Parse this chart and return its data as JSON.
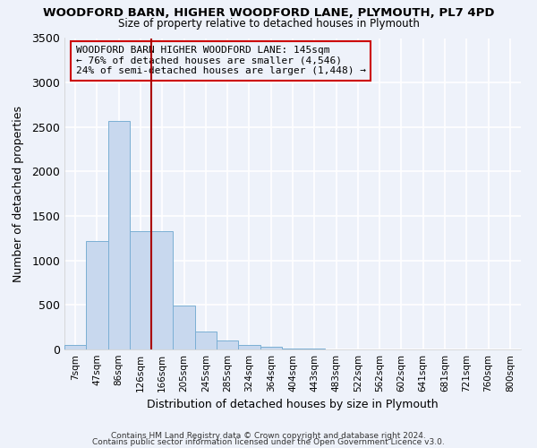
{
  "title": "WOODFORD BARN, HIGHER WOODFORD LANE, PLYMOUTH, PL7 4PD",
  "subtitle": "Size of property relative to detached houses in Plymouth",
  "xlabel": "Distribution of detached houses by size in Plymouth",
  "ylabel": "Number of detached properties",
  "bin_labels": [
    "7sqm",
    "47sqm",
    "86sqm",
    "126sqm",
    "166sqm",
    "205sqm",
    "245sqm",
    "285sqm",
    "324sqm",
    "364sqm",
    "404sqm",
    "443sqm",
    "483sqm",
    "522sqm",
    "562sqm",
    "602sqm",
    "641sqm",
    "681sqm",
    "721sqm",
    "760sqm",
    "800sqm"
  ],
  "bar_heights": [
    55,
    1220,
    2570,
    1330,
    1330,
    495,
    200,
    105,
    50,
    30,
    12,
    8,
    5,
    0,
    0,
    0,
    0,
    0,
    0,
    0,
    0
  ],
  "bar_color": "#c8d8ee",
  "bar_edgecolor": "#7bafd4",
  "vline_x": 3.5,
  "vline_color": "#aa0000",
  "annotation_text": "WOODFORD BARN HIGHER WOODFORD LANE: 145sqm\n← 76% of detached houses are smaller (4,546)\n24% of semi-detached houses are larger (1,448) →",
  "annotation_box_edgecolor": "#cc0000",
  "ylim": [
    0,
    3500
  ],
  "yticks": [
    0,
    500,
    1000,
    1500,
    2000,
    2500,
    3000,
    3500
  ],
  "footer_line1": "Contains HM Land Registry data © Crown copyright and database right 2024.",
  "footer_line2": "Contains public sector information licensed under the Open Government Licence v3.0.",
  "bg_color": "#eef2fa",
  "plot_bg_color": "#eef2fa",
  "grid_color": "#ffffff"
}
